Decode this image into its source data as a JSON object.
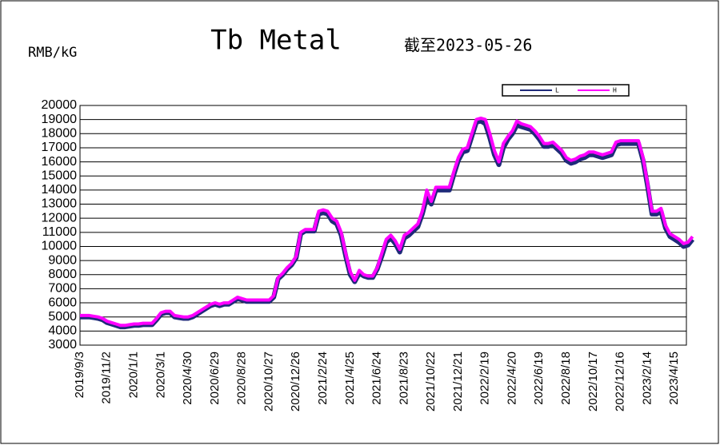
{
  "chart_data": {
    "type": "line",
    "title": "Tb Metal",
    "subtitle": "截至2023-05-26",
    "y_label": "RMB/kG",
    "categories": [
      "2019/9/3",
      null,
      null,
      null,
      null,
      null,
      "2019/11/2",
      null,
      null,
      null,
      null,
      null,
      "2020/1/1",
      null,
      null,
      null,
      null,
      null,
      "2020/3/1",
      null,
      null,
      null,
      null,
      null,
      "2020/4/30",
      null,
      null,
      null,
      null,
      null,
      "2020/6/29",
      null,
      null,
      null,
      null,
      null,
      "2020/8/28",
      null,
      null,
      null,
      null,
      null,
      "2020/10/27",
      null,
      null,
      null,
      null,
      null,
      "2020/12/26",
      null,
      null,
      null,
      null,
      null,
      "2021/2/24",
      null,
      null,
      null,
      null,
      null,
      "2021/4/25",
      null,
      null,
      null,
      null,
      null,
      "2021/6/24",
      null,
      null,
      null,
      null,
      null,
      "2021/8/23",
      null,
      null,
      null,
      null,
      null,
      "2021/10/22",
      null,
      null,
      null,
      null,
      null,
      "2021/12/21",
      null,
      null,
      null,
      null,
      null,
      "2022/2/19",
      null,
      null,
      null,
      null,
      null,
      "2022/4/20",
      null,
      null,
      null,
      null,
      null,
      "2022/6/19",
      null,
      null,
      null,
      null,
      null,
      "2022/8/18",
      null,
      null,
      null,
      null,
      null,
      "2022/10/17",
      null,
      null,
      null,
      null,
      null,
      "2022/12/16",
      null,
      null,
      null,
      null,
      null,
      "2023/2/14",
      null,
      null,
      null,
      null,
      null,
      "2023/4/15",
      null,
      null,
      null,
      null
    ],
    "series": [
      {
        "name": "L",
        "color": "#1f2a7a",
        "values": [
          5000,
          5000,
          5000,
          4950,
          4900,
          4800,
          4600,
          4500,
          4400,
          4300,
          4300,
          4350,
          4400,
          4400,
          4450,
          4450,
          4450,
          4800,
          5200,
          5300,
          5300,
          5000,
          4950,
          4900,
          4900,
          5000,
          5200,
          5400,
          5600,
          5800,
          5900,
          5800,
          5900,
          5900,
          6100,
          6300,
          6200,
          6100,
          6100,
          6100,
          6100,
          6100,
          6100,
          6400,
          7700,
          8000,
          8400,
          8700,
          9200,
          10900,
          11100,
          11100,
          11100,
          12300,
          12400,
          12300,
          11800,
          11600,
          10800,
          9300,
          8000,
          7500,
          8100,
          7900,
          7800,
          7800,
          8400,
          9300,
          10300,
          10600,
          10200,
          9600,
          10600,
          10800,
          11100,
          11400,
          12300,
          13500,
          13000,
          14000,
          14000,
          14000,
          14000,
          15100,
          16100,
          16700,
          16800,
          17800,
          18800,
          18900,
          18700,
          17700,
          16500,
          15800,
          17000,
          17600,
          18000,
          18600,
          18500,
          18400,
          18300,
          18000,
          17600,
          17100,
          17100,
          17200,
          16900,
          16600,
          16100,
          15900,
          16000,
          16200,
          16300,
          16500,
          16500,
          16400,
          16300,
          16400,
          16500,
          17200,
          17300,
          17300,
          17300,
          17300,
          17300,
          16100,
          14300,
          12300,
          12300,
          12500,
          11300,
          10700,
          10500,
          10300,
          10000,
          10100,
          10500
        ]
      },
      {
        "name": "H",
        "color": "#ff00ff",
        "values": [
          5100,
          5100,
          5100,
          5050,
          5000,
          4900,
          4700,
          4600,
          4500,
          4400,
          4400,
          4450,
          4500,
          4500,
          4550,
          4550,
          4550,
          4900,
          5300,
          5400,
          5400,
          5100,
          5050,
          5000,
          5000,
          5100,
          5300,
          5500,
          5700,
          5900,
          6000,
          5900,
          6000,
          6000,
          6200,
          6400,
          6300,
          6200,
          6200,
          6200,
          6200,
          6200,
          6200,
          6500,
          7800,
          8100,
          8500,
          8800,
          9300,
          11000,
          11200,
          11200,
          11200,
          12500,
          12600,
          12500,
          12000,
          11800,
          11000,
          9500,
          8200,
          7600,
          8300,
          8000,
          7900,
          7900,
          8500,
          9500,
          10500,
          10800,
          10400,
          9800,
          10800,
          11000,
          11300,
          11600,
          12500,
          14000,
          13200,
          14200,
          14200,
          14200,
          14200,
          15300,
          16300,
          16900,
          17000,
          18000,
          19000,
          19100,
          19000,
          18000,
          16800,
          16000,
          17300,
          17800,
          18200,
          18900,
          18700,
          18600,
          18500,
          18200,
          17800,
          17300,
          17300,
          17400,
          17100,
          16800,
          16300,
          16100,
          16200,
          16400,
          16500,
          16700,
          16700,
          16600,
          16500,
          16600,
          16700,
          17400,
          17500,
          17500,
          17500,
          17500,
          17500,
          16300,
          14500,
          12500,
          12500,
          12700,
          11500,
          10900,
          10700,
          10500,
          10200,
          10300,
          10700
        ]
      }
    ],
    "ylim": [
      3000,
      20000
    ],
    "yticks": [
      3000,
      4000,
      5000,
      6000,
      7000,
      8000,
      9000,
      10000,
      11000,
      12000,
      13000,
      14000,
      15000,
      16000,
      17000,
      18000,
      19000,
      20000
    ],
    "grid": true,
    "legend": "top-right"
  }
}
